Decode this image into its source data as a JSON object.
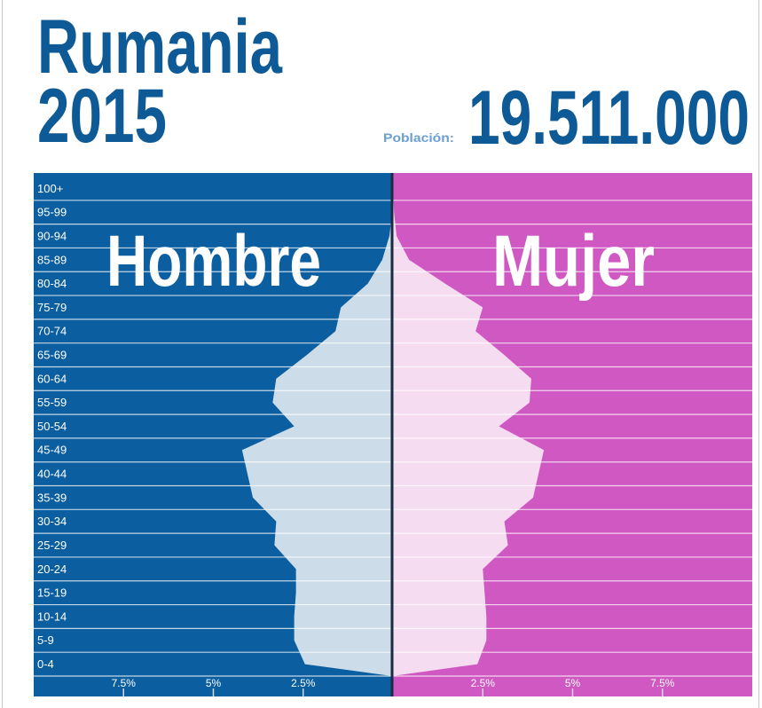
{
  "chart_data": {
    "type": "pyramid",
    "title": "Rumania",
    "subtitle": "2015",
    "population_label": "Población:",
    "population": "19.511.000",
    "categories": [
      "0-4",
      "5-9",
      "10-14",
      "15-19",
      "20-24",
      "25-29",
      "30-34",
      "35-39",
      "40-44",
      "45-49",
      "50-54",
      "55-59",
      "60-64",
      "65-69",
      "70-74",
      "75-79",
      "80-84",
      "85-89",
      "90-94",
      "95-99",
      "100+"
    ],
    "series": [
      {
        "name": "Hombre",
        "color": "#ccdde9",
        "side": "left",
        "values": [
          2.45,
          2.75,
          2.75,
          2.7,
          2.7,
          3.3,
          3.25,
          3.9,
          4.05,
          4.2,
          2.75,
          3.35,
          3.25,
          2.4,
          1.6,
          1.45,
          0.7,
          0.3,
          0.1,
          0.02,
          0
        ]
      },
      {
        "name": "Mujer",
        "color": "#f6dcf0",
        "side": "right",
        "values": [
          2.35,
          2.6,
          2.6,
          2.55,
          2.5,
          3.2,
          3.1,
          3.9,
          4.05,
          4.2,
          2.95,
          3.8,
          3.85,
          3.1,
          2.3,
          2.5,
          1.45,
          0.45,
          0.1,
          0.03,
          0
        ]
      }
    ],
    "xlim": [
      -10,
      10
    ],
    "xticks": [
      {
        "value": -7.5,
        "label": "7.5%"
      },
      {
        "value": -5,
        "label": "5%"
      },
      {
        "value": -2.5,
        "label": "2.5%"
      },
      {
        "value": 2.5,
        "label": "2.5%"
      },
      {
        "value": 5,
        "label": "5%"
      },
      {
        "value": 7.5,
        "label": "7.5%"
      }
    ]
  }
}
